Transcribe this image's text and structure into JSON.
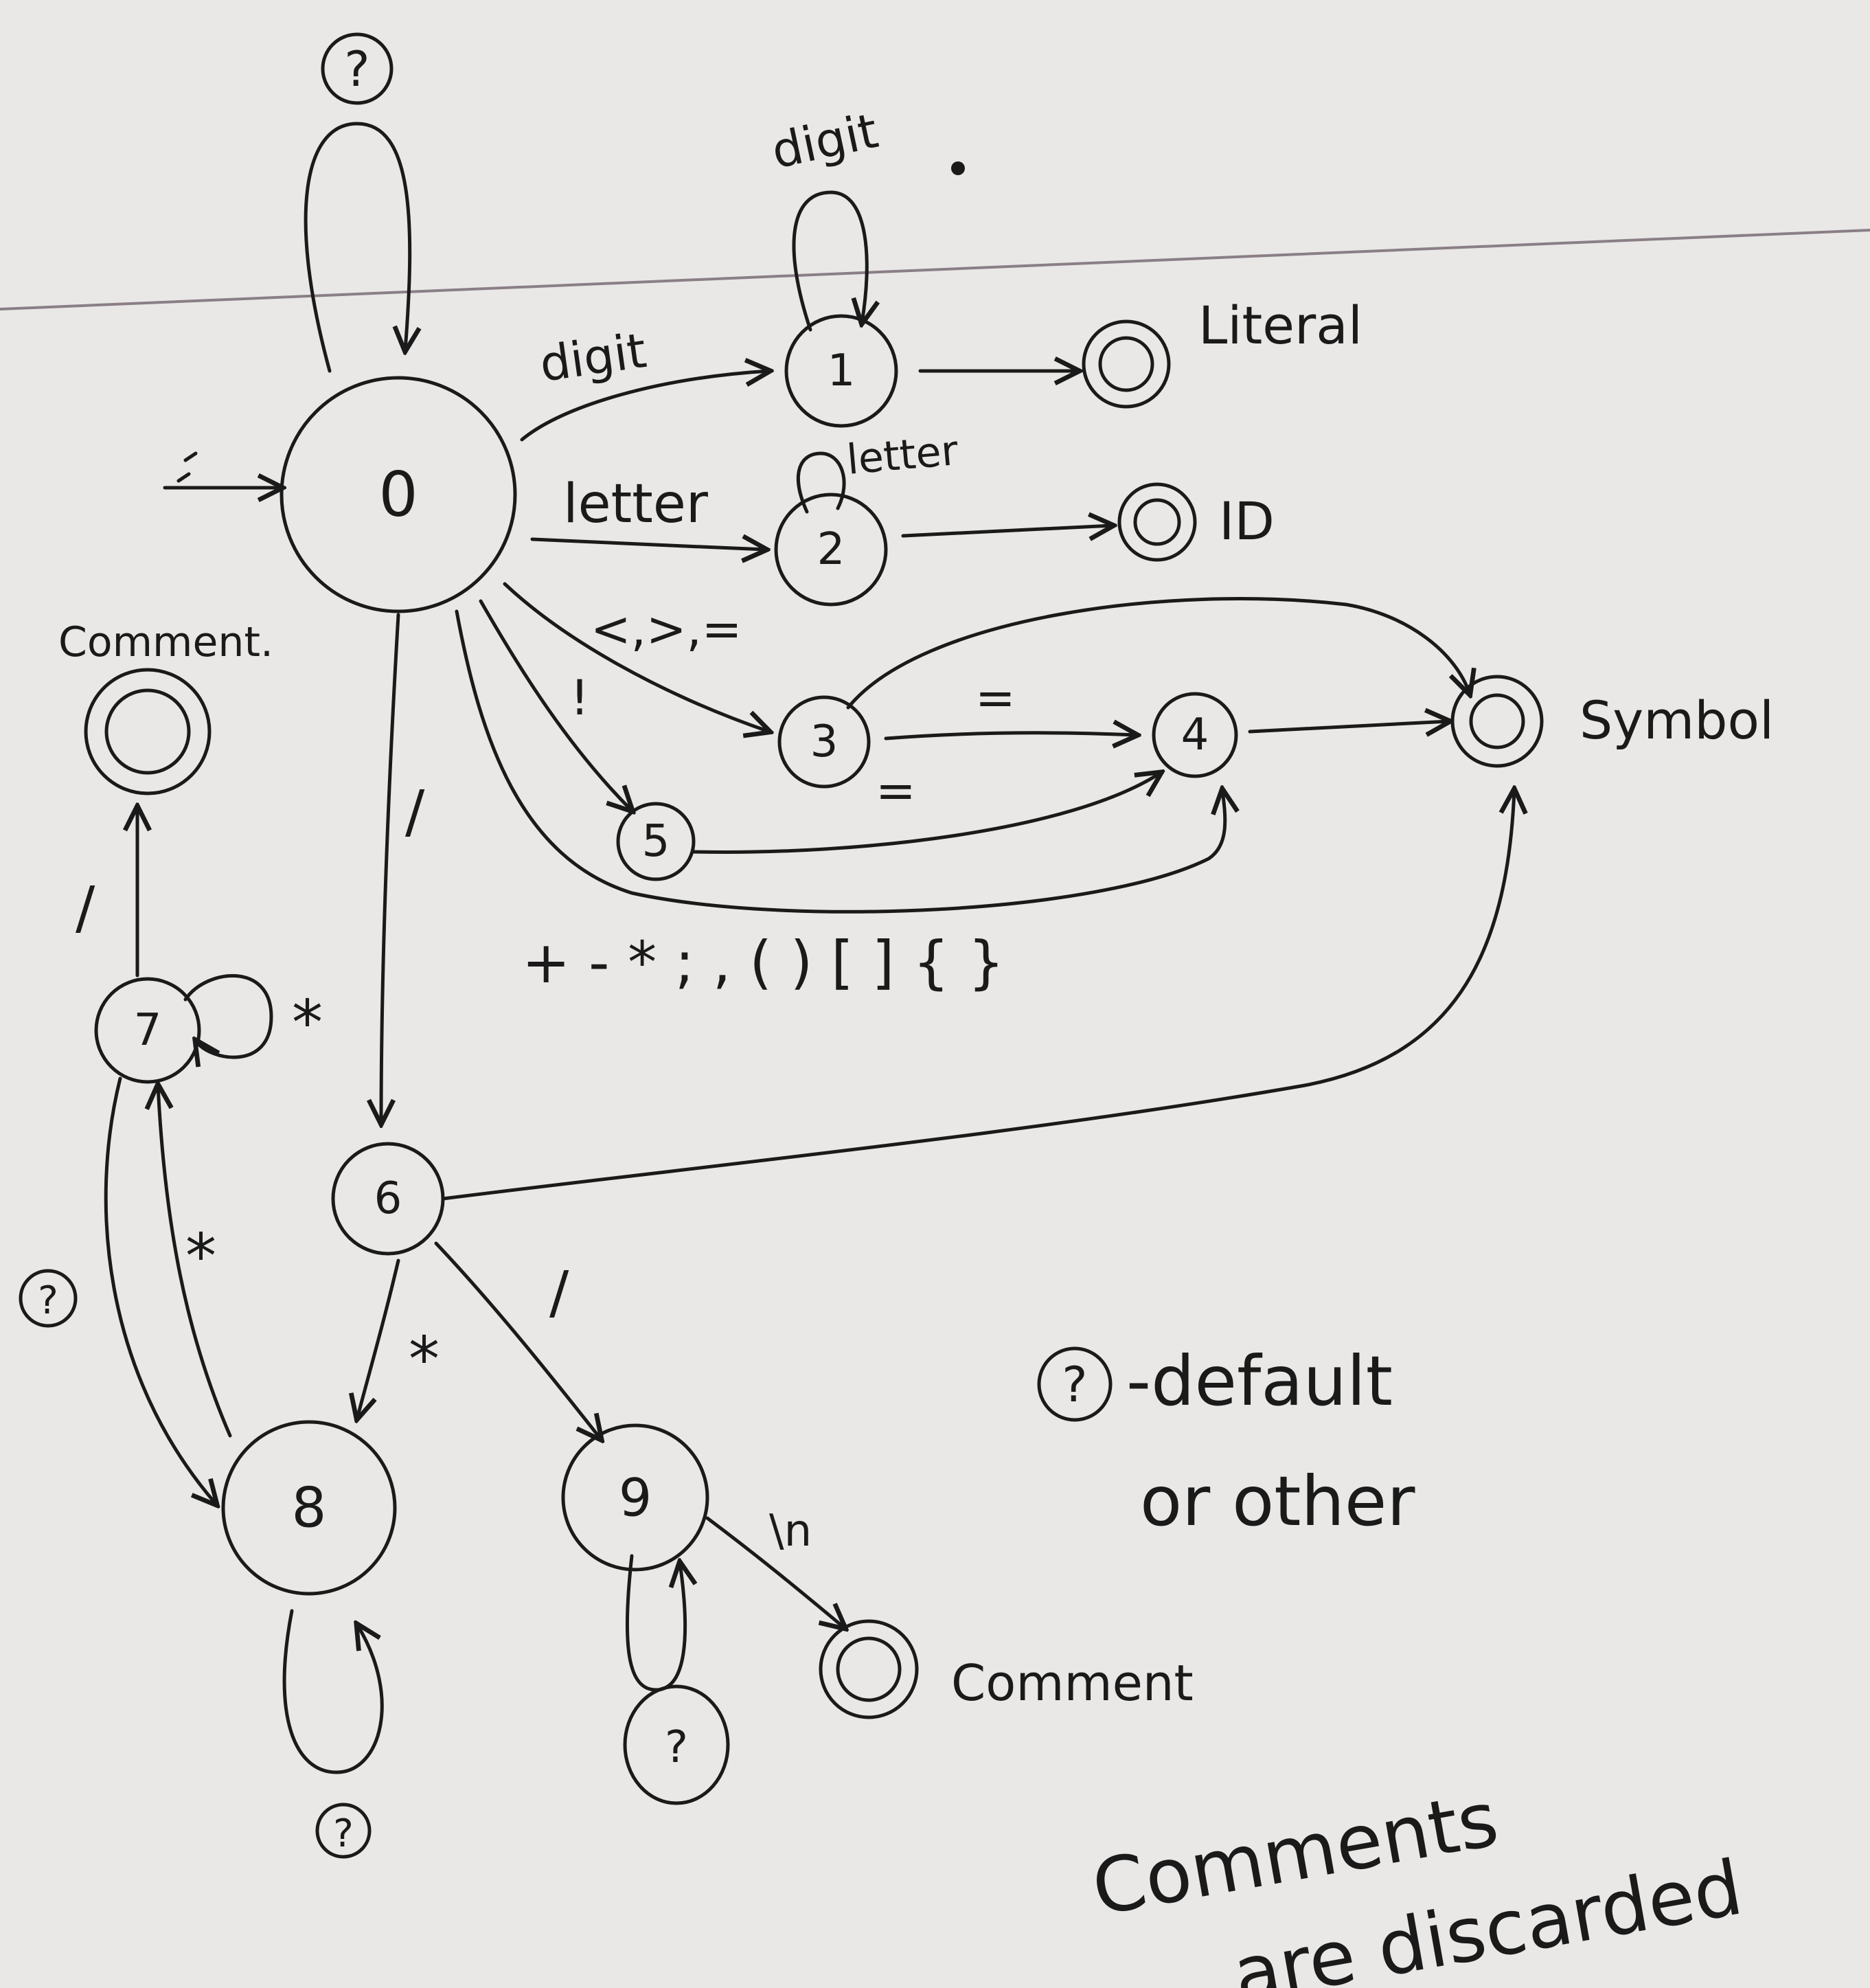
{
  "states": [
    {
      "id": "0",
      "label": "0"
    },
    {
      "id": "1",
      "label": "1"
    },
    {
      "id": "2",
      "label": "2"
    },
    {
      "id": "3",
      "label": "3"
    },
    {
      "id": "4",
      "label": "4"
    },
    {
      "id": "5",
      "label": "5"
    },
    {
      "id": "6",
      "label": "6"
    },
    {
      "id": "7",
      "label": "7"
    },
    {
      "id": "8",
      "label": "8"
    },
    {
      "id": "9",
      "label": "9"
    }
  ],
  "accepting_states": {
    "literal": "Literal",
    "id": "ID",
    "symbol": "Symbol",
    "comment_top": "Comment.",
    "comment_bottom": "Comment"
  },
  "edge_labels": {
    "start_loop": "?",
    "digit_0_1": "digit",
    "digit_loop_1": "digit",
    "letter_0_2": "letter",
    "letter_loop_2": "letter",
    "rel_0_3": "<,>,=",
    "bang_0_5": "!",
    "eq_3_4": "=",
    "eq_5_4": "=",
    "single_symbols": "+ - * ; , ( ) [ ] { }",
    "slash_0_6": "/",
    "star_6_8": "*",
    "slash_6_9": "/",
    "other_loop_8": "?",
    "other_8_7": "?",
    "star_7_8": "*",
    "star_loop_7": "*",
    "slash_7_comment": "/",
    "newline_9_comment": "\\n",
    "other_loop_9": "?"
  },
  "legend": {
    "symbol": "?",
    "line1": "-default",
    "line2": "or other"
  },
  "note": {
    "line1": "Comments",
    "line2": "are discarded"
  }
}
